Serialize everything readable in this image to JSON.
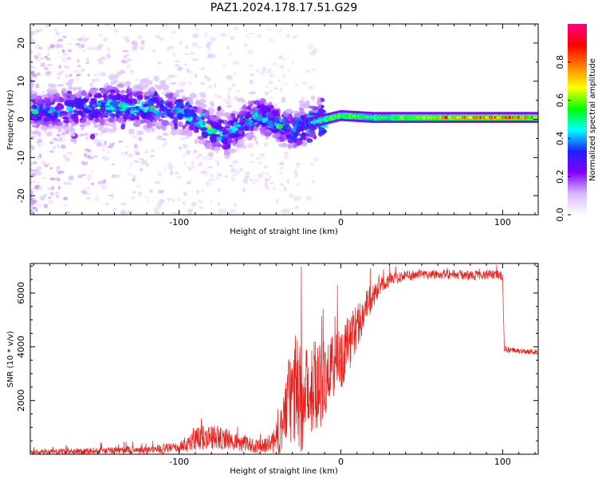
{
  "title": "PAZ1.2024.178.17.51.G29",
  "chart_data": [
    {
      "type": "heatmap",
      "xlabel": "Height of straight line (km)",
      "ylabel": "Frequency (Hz)",
      "xlim": [
        -192,
        122
      ],
      "ylim": [
        -25,
        25
      ],
      "xticks": [
        -100,
        0,
        100
      ],
      "yticks": [
        -20,
        -10,
        0,
        10,
        20
      ],
      "colorbar": {
        "label": "Normalized spectral amplitude",
        "range": [
          0,
          1
        ],
        "ticks": [
          0.0,
          0.2,
          0.4,
          0.6,
          0.8
        ],
        "colormap": [
          "#ffffff",
          "#d9b8ff",
          "#8000ff",
          "#2020ff",
          "#00ffff",
          "#00ff00",
          "#ffff00",
          "#ff8000",
          "#ff0000",
          "#ff0080"
        ]
      },
      "ridge": {
        "description_points_x": [
          -190,
          -160,
          -140,
          -120,
          -100,
          -90,
          -80,
          -70,
          -60,
          -50,
          -40,
          -30,
          -20,
          -10,
          0,
          20,
          40,
          60,
          80,
          100,
          122
        ],
        "center_freq": [
          2,
          3,
          4,
          3,
          2,
          0,
          -3,
          -4,
          -1,
          1,
          -1,
          -3,
          -1,
          0,
          1,
          0.5,
          0.5,
          0.5,
          0.5,
          0.5,
          0.5
        ],
        "peak_amplitude": [
          0.25,
          0.3,
          0.35,
          0.3,
          0.3,
          0.3,
          0.35,
          0.35,
          0.3,
          0.3,
          0.3,
          0.3,
          0.35,
          0.45,
          0.5,
          0.45,
          0.5,
          0.55,
          0.6,
          0.6,
          0.55
        ]
      }
    },
    {
      "type": "line",
      "xlabel": "Height of straight line (km)",
      "ylabel": "SNR (10 * v/v)",
      "xlim": [
        -192,
        122
      ],
      "ylim": [
        0,
        7100
      ],
      "xticks": [
        -100,
        0,
        100
      ],
      "yticks": [
        2000,
        4000,
        6000
      ],
      "color": "#e8201c",
      "envelope": {
        "x": [
          -192,
          -150,
          -120,
          -100,
          -95,
          -90,
          -80,
          -70,
          -60,
          -50,
          -45,
          -38,
          -33,
          -28,
          -23,
          -18,
          -12,
          -5,
          0,
          5,
          10,
          15,
          20,
          25,
          30,
          40,
          50,
          60,
          70,
          80,
          90,
          100,
          101,
          110,
          122
        ],
        "mean": [
          80,
          130,
          170,
          250,
          380,
          600,
          650,
          550,
          380,
          300,
          350,
          700,
          1900,
          2400,
          1900,
          2600,
          2700,
          3200,
          3600,
          4100,
          4800,
          5400,
          5900,
          6300,
          6500,
          6650,
          6700,
          6700,
          6700,
          6650,
          6700,
          6650,
          3900,
          3850,
          3800
        ],
        "spread": [
          80,
          120,
          150,
          200,
          300,
          450,
          450,
          400,
          300,
          250,
          300,
          700,
          1500,
          2200,
          2000,
          1800,
          1700,
          1300,
          1200,
          1100,
          900,
          700,
          450,
          300,
          250,
          200,
          180,
          180,
          180,
          180,
          180,
          180,
          120,
          100,
          100
        ]
      }
    }
  ]
}
